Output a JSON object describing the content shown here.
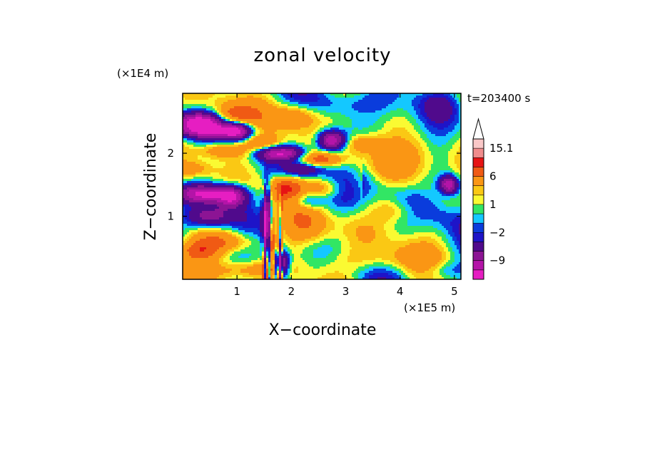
{
  "chart_data": {
    "type": "heatmap",
    "title": "zonal velocity",
    "xlabel": "X−coordinate",
    "ylabel": "Z−coordinate",
    "x_unit": "(×1E5 m)",
    "y_unit": "(×1E4 m)",
    "time_label": "t=203400 s",
    "xlim": [
      0,
      5.12
    ],
    "ylim": [
      0,
      2.95
    ],
    "x_ticks": [
      1,
      2,
      3,
      4,
      5
    ],
    "y_ticks": [
      1,
      2
    ],
    "colorbar": {
      "levels": [
        -15,
        -12,
        -9,
        -6,
        -3,
        -2,
        -1,
        0,
        1,
        2,
        3,
        6,
        9,
        12,
        15.1
      ],
      "colors": [
        "#e61ec2",
        "#b414a8",
        "#8c1494",
        "#500a8c",
        "#1e14c8",
        "#0a3cdc",
        "#14c8ff",
        "#32e664",
        "#fafa32",
        "#fac814",
        "#fa9614",
        "#f05a14",
        "#e61414",
        "#f08c8c",
        "#fac8c8"
      ],
      "labels": [
        {
          "value": 15.1,
          "text": "15.1"
        },
        {
          "value": 6,
          "text": "6"
        },
        {
          "value": 1,
          "text": "1"
        },
        {
          "value": -2,
          "text": "−2"
        },
        {
          "value": -9,
          "text": "−9"
        }
      ],
      "extend": "max"
    },
    "features": [
      {
        "x": 0.3,
        "z": 2.5,
        "amp": -13,
        "sx": 0.32,
        "sz": 0.1
      },
      {
        "x": 0.5,
        "z": 2.35,
        "amp": -8,
        "sx": 0.5,
        "sz": 0.08
      },
      {
        "x": 1.0,
        "z": 2.35,
        "amp": -11,
        "sx": 0.18,
        "sz": 0.1
      },
      {
        "x": 1.8,
        "z": 2.0,
        "amp": -12,
        "sx": 0.3,
        "sz": 0.08
      },
      {
        "x": 2.75,
        "z": 2.2,
        "amp": -14,
        "sx": 0.18,
        "sz": 0.11
      },
      {
        "x": 2.2,
        "z": 1.75,
        "amp": -6,
        "sx": 0.25,
        "sz": 0.08
      },
      {
        "x": 0.4,
        "z": 1.35,
        "amp": -13,
        "sx": 0.4,
        "sz": 0.1
      },
      {
        "x": 0.9,
        "z": 1.3,
        "amp": -10,
        "sx": 0.18,
        "sz": 0.12
      },
      {
        "x": 0.5,
        "z": 1.0,
        "amp": -9,
        "sx": 0.3,
        "sz": 0.12
      },
      {
        "x": 1.55,
        "z": 0.9,
        "amp": -13,
        "sx": 0.06,
        "sz": 0.4
      },
      {
        "x": 1.82,
        "z": 0.25,
        "amp": -12,
        "sx": 0.1,
        "sz": 0.15
      },
      {
        "x": 2.3,
        "z": 1.25,
        "amp": -5,
        "sx": 0.2,
        "sz": 0.1
      },
      {
        "x": 4.9,
        "z": 1.5,
        "amp": -12,
        "sx": 0.12,
        "sz": 0.1
      },
      {
        "x": 4.7,
        "z": 2.8,
        "amp": -4,
        "sx": 0.3,
        "sz": 0.2
      },
      {
        "x": 3.0,
        "z": 2.8,
        "amp": -3,
        "sx": 0.5,
        "sz": 0.15
      },
      {
        "x": 4.8,
        "z": 0.15,
        "amp": -3,
        "sx": 0.3,
        "sz": 0.1
      },
      {
        "x": 0.9,
        "z": 2.6,
        "amp": 6,
        "sx": 0.25,
        "sz": 0.12
      },
      {
        "x": 2.1,
        "z": 2.6,
        "amp": 6,
        "sx": 0.3,
        "sz": 0.15
      },
      {
        "x": 0.7,
        "z": 2.05,
        "amp": 6,
        "sx": 0.35,
        "sz": 0.1
      },
      {
        "x": 1.5,
        "z": 2.15,
        "amp": 5,
        "sx": 0.25,
        "sz": 0.1
      },
      {
        "x": 2.5,
        "z": 1.9,
        "amp": 7,
        "sx": 0.3,
        "sz": 0.08
      },
      {
        "x": 3.3,
        "z": 2.15,
        "amp": 4,
        "sx": 0.3,
        "sz": 0.1
      },
      {
        "x": 1.9,
        "z": 1.45,
        "amp": 7,
        "sx": 0.2,
        "sz": 0.12
      },
      {
        "x": 2.6,
        "z": 1.45,
        "amp": 5,
        "sx": 0.25,
        "sz": 0.12
      },
      {
        "x": 0.8,
        "z": 0.6,
        "amp": 5,
        "sx": 0.4,
        "sz": 0.12
      },
      {
        "x": 0.3,
        "z": 0.45,
        "amp": 5,
        "sx": 0.25,
        "sz": 0.1
      },
      {
        "x": 2.3,
        "z": 0.8,
        "amp": 4,
        "sx": 0.3,
        "sz": 0.2
      },
      {
        "x": 4.3,
        "z": 1.9,
        "amp": 4,
        "sx": 0.3,
        "sz": 0.25
      },
      {
        "x": 3.9,
        "z": 1.1,
        "amp": 3,
        "sx": 0.3,
        "sz": 0.15
      },
      {
        "x": 1.65,
        "z": 0.6,
        "amp": 8,
        "sx": 0.05,
        "sz": 0.3
      },
      {
        "x": 0.2,
        "z": 1.75,
        "amp": 4,
        "sx": 0.25,
        "sz": 0.1
      },
      {
        "x": 3.5,
        "z": 0.3,
        "amp": 3,
        "sx": 0.6,
        "sz": 0.15
      },
      {
        "x": 1.2,
        "z": 0.15,
        "amp": 4,
        "sx": 0.5,
        "sz": 0.1
      }
    ]
  }
}
